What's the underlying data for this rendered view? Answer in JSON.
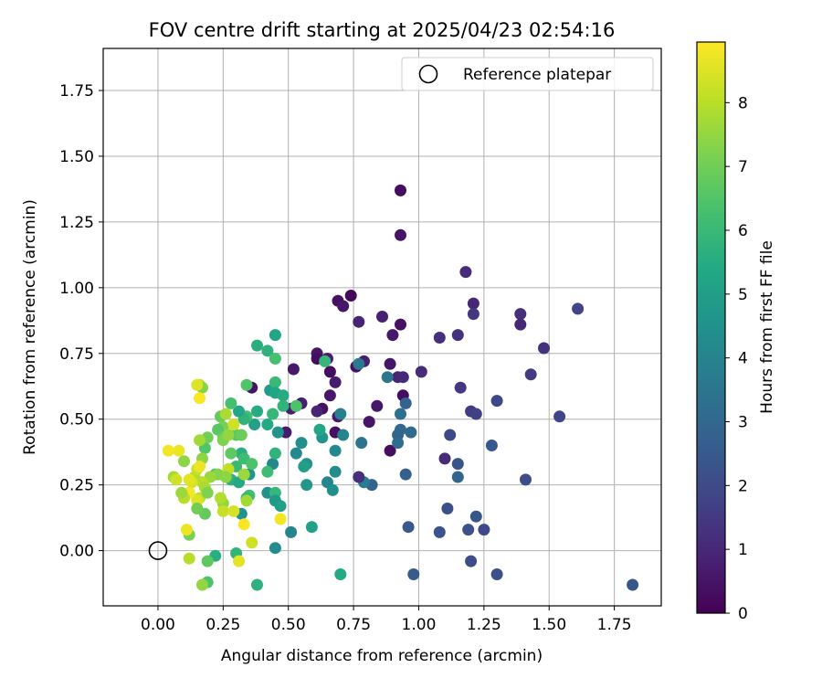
{
  "chart_data": {
    "type": "scatter",
    "title": "FOV centre drift starting at 2025/04/23 02:54:16",
    "xlabel": "Angular distance from reference (arcmin)",
    "ylabel": "Rotation from reference (arcmin)",
    "xlim": [
      -0.21,
      1.93
    ],
    "ylim": [
      -0.21,
      1.91
    ],
    "xticks": [
      0,
      0.25,
      0.5,
      0.75,
      1.0,
      1.25,
      1.5,
      1.75
    ],
    "xtick_labels": [
      "0.00",
      "0.25",
      "0.50",
      "0.75",
      "1.00",
      "1.25",
      "1.50",
      "1.75"
    ],
    "yticks": [
      0,
      0.25,
      0.5,
      0.75,
      1.0,
      1.25,
      1.5,
      1.75
    ],
    "ytick_labels": [
      "0.00",
      "0.25",
      "0.50",
      "0.75",
      "1.00",
      "1.25",
      "1.50",
      "1.75"
    ],
    "grid": true,
    "legend": {
      "position": "top-right",
      "entries": [
        "Reference platepar"
      ]
    },
    "reference_point": {
      "x": 0.0,
      "y": 0.0
    },
    "colorbar": {
      "label": "Hours from first FF file",
      "min": 0,
      "max": 8.95,
      "ticks": [
        0,
        1,
        2,
        3,
        4,
        5,
        6,
        7,
        8
      ],
      "tick_labels": [
        "0",
        "1",
        "2",
        "3",
        "4",
        "5",
        "6",
        "7",
        "8"
      ],
      "colormap": "viridis"
    },
    "points": [
      {
        "x": 0.93,
        "y": 1.37,
        "t": 0.3
      },
      {
        "x": 0.93,
        "y": 1.2,
        "t": 0.5
      },
      {
        "x": 0.74,
        "y": 0.97,
        "t": 0.2
      },
      {
        "x": 0.69,
        "y": 0.95,
        "t": 0.4
      },
      {
        "x": 0.71,
        "y": 0.93,
        "t": 0.6
      },
      {
        "x": 0.86,
        "y": 0.89,
        "t": 0.8
      },
      {
        "x": 0.77,
        "y": 0.87,
        "t": 0.9
      },
      {
        "x": 0.93,
        "y": 0.86,
        "t": 0.4
      },
      {
        "x": 0.9,
        "y": 0.82,
        "t": 0.6
      },
      {
        "x": 0.61,
        "y": 0.75,
        "t": 0.5
      },
      {
        "x": 0.61,
        "y": 0.73,
        "t": 0.3
      },
      {
        "x": 0.65,
        "y": 0.73,
        "t": 0.7
      },
      {
        "x": 0.79,
        "y": 0.72,
        "t": 0.8
      },
      {
        "x": 0.89,
        "y": 0.71,
        "t": 0.5
      },
      {
        "x": 0.52,
        "y": 0.69,
        "t": 0.6
      },
      {
        "x": 0.76,
        "y": 0.7,
        "t": 0.4
      },
      {
        "x": 0.66,
        "y": 0.68,
        "t": 0.3
      },
      {
        "x": 0.92,
        "y": 0.66,
        "t": 0.9
      },
      {
        "x": 0.94,
        "y": 0.66,
        "t": 1.0
      },
      {
        "x": 0.68,
        "y": 0.64,
        "t": 0.7
      },
      {
        "x": 0.36,
        "y": 0.62,
        "t": 0.5
      },
      {
        "x": 0.66,
        "y": 0.59,
        "t": 0.6
      },
      {
        "x": 0.94,
        "y": 0.59,
        "t": 0.3
      },
      {
        "x": 0.55,
        "y": 0.56,
        "t": 0.8
      },
      {
        "x": 0.84,
        "y": 0.55,
        "t": 0.6
      },
      {
        "x": 0.63,
        "y": 0.54,
        "t": 0.4
      },
      {
        "x": 0.61,
        "y": 0.53,
        "t": 0.9
      },
      {
        "x": 0.69,
        "y": 0.51,
        "t": 0.6
      },
      {
        "x": 0.81,
        "y": 0.49,
        "t": 0.5
      },
      {
        "x": 0.49,
        "y": 0.45,
        "t": 0.7
      },
      {
        "x": 0.68,
        "y": 0.45,
        "t": 0.4
      },
      {
        "x": 0.89,
        "y": 0.38,
        "t": 0.3
      },
      {
        "x": 0.51,
        "y": 0.54,
        "t": 0.8
      },
      {
        "x": 1.01,
        "y": 0.68,
        "t": 1.1
      },
      {
        "x": 1.08,
        "y": 0.81,
        "t": 1.2
      },
      {
        "x": 1.15,
        "y": 0.82,
        "t": 1.3
      },
      {
        "x": 1.18,
        "y": 1.06,
        "t": 1.1
      },
      {
        "x": 1.21,
        "y": 0.94,
        "t": 1.0
      },
      {
        "x": 1.21,
        "y": 0.9,
        "t": 1.4
      },
      {
        "x": 1.39,
        "y": 0.9,
        "t": 1.2
      },
      {
        "x": 1.39,
        "y": 0.86,
        "t": 1.0
      },
      {
        "x": 1.48,
        "y": 0.77,
        "t": 1.3
      },
      {
        "x": 1.61,
        "y": 0.92,
        "t": 1.8
      },
      {
        "x": 1.43,
        "y": 0.67,
        "t": 1.5
      },
      {
        "x": 1.16,
        "y": 0.62,
        "t": 1.4
      },
      {
        "x": 1.2,
        "y": 0.53,
        "t": 1.6
      },
      {
        "x": 1.22,
        "y": 0.52,
        "t": 1.7
      },
      {
        "x": 1.3,
        "y": 0.57,
        "t": 1.9
      },
      {
        "x": 1.54,
        "y": 0.51,
        "t": 1.8
      },
      {
        "x": 1.1,
        "y": 0.35,
        "t": 1.1
      },
      {
        "x": 1.12,
        "y": 0.44,
        "t": 2.0
      },
      {
        "x": 1.15,
        "y": 0.33,
        "t": 2.3
      },
      {
        "x": 1.15,
        "y": 0.28,
        "t": 2.9
      },
      {
        "x": 1.28,
        "y": 0.4,
        "t": 2.5
      },
      {
        "x": 1.41,
        "y": 0.27,
        "t": 2.1
      },
      {
        "x": 1.11,
        "y": 0.16,
        "t": 2.2
      },
      {
        "x": 1.22,
        "y": 0.13,
        "t": 2.4
      },
      {
        "x": 1.19,
        "y": 0.08,
        "t": 2.2
      },
      {
        "x": 1.25,
        "y": 0.08,
        "t": 2.0
      },
      {
        "x": 1.08,
        "y": 0.07,
        "t": 2.3
      },
      {
        "x": 0.96,
        "y": 0.09,
        "t": 2.5
      },
      {
        "x": 0.98,
        "y": -0.09,
        "t": 2.6
      },
      {
        "x": 1.2,
        "y": -0.04,
        "t": 2.1
      },
      {
        "x": 1.3,
        "y": -0.09,
        "t": 2.2
      },
      {
        "x": 1.82,
        "y": -0.13,
        "t": 2.4
      },
      {
        "x": 0.92,
        "y": 0.44,
        "t": 2.9
      },
      {
        "x": 0.93,
        "y": 0.46,
        "t": 3.0
      },
      {
        "x": 0.92,
        "y": 0.41,
        "t": 3.2
      },
      {
        "x": 0.97,
        "y": 0.45,
        "t": 3.1
      },
      {
        "x": 0.93,
        "y": 0.52,
        "t": 3.3
      },
      {
        "x": 0.95,
        "y": 0.56,
        "t": 2.8
      },
      {
        "x": 0.95,
        "y": 0.29,
        "t": 2.7
      },
      {
        "x": 0.88,
        "y": 0.66,
        "t": 3.5
      },
      {
        "x": 0.77,
        "y": 0.71,
        "t": 3.6
      },
      {
        "x": 0.82,
        "y": 0.25,
        "t": 2.8
      },
      {
        "x": 0.79,
        "y": 0.26,
        "t": 3.7
      },
      {
        "x": 0.78,
        "y": 0.41,
        "t": 3.4
      },
      {
        "x": 0.77,
        "y": 0.28,
        "t": 1.2
      },
      {
        "x": 0.7,
        "y": 0.52,
        "t": 3.9
      },
      {
        "x": 0.71,
        "y": 0.44,
        "t": 4.0
      },
      {
        "x": 0.68,
        "y": 0.38,
        "t": 4.2
      },
      {
        "x": 0.68,
        "y": 0.3,
        "t": 4.3
      },
      {
        "x": 0.65,
        "y": 0.26,
        "t": 4.1
      },
      {
        "x": 0.67,
        "y": 0.23,
        "t": 4.4
      },
      {
        "x": 0.63,
        "y": 0.43,
        "t": 4.6
      },
      {
        "x": 0.62,
        "y": 0.46,
        "t": 5.3
      },
      {
        "x": 0.57,
        "y": 0.33,
        "t": 4.5
      },
      {
        "x": 0.55,
        "y": 0.41,
        "t": 4.4
      },
      {
        "x": 0.53,
        "y": 0.37,
        "t": 4.2
      },
      {
        "x": 0.57,
        "y": 0.25,
        "t": 4.7
      },
      {
        "x": 0.51,
        "y": 0.07,
        "t": 4.0
      },
      {
        "x": 0.45,
        "y": 0.01,
        "t": 4.3
      },
      {
        "x": 0.59,
        "y": 0.09,
        "t": 5.1
      },
      {
        "x": 0.7,
        "y": -0.09,
        "t": 5.4
      },
      {
        "x": 0.64,
        "y": 0.72,
        "t": 5.9
      },
      {
        "x": 0.56,
        "y": 0.32,
        "t": 5.0
      },
      {
        "x": 0.45,
        "y": 0.82,
        "t": 5.2
      },
      {
        "x": 0.38,
        "y": 0.78,
        "t": 5.6
      },
      {
        "x": 0.42,
        "y": 0.76,
        "t": 5.7
      },
      {
        "x": 0.45,
        "y": 0.73,
        "t": 6.3
      },
      {
        "x": 0.43,
        "y": 0.61,
        "t": 4.9
      },
      {
        "x": 0.45,
        "y": 0.64,
        "t": 6.0
      },
      {
        "x": 0.45,
        "y": 0.6,
        "t": 5.2
      },
      {
        "x": 0.48,
        "y": 0.59,
        "t": 5.5
      },
      {
        "x": 0.48,
        "y": 0.55,
        "t": 5.8
      },
      {
        "x": 0.53,
        "y": 0.55,
        "t": 6.4
      },
      {
        "x": 0.44,
        "y": 0.52,
        "t": 5.9
      },
      {
        "x": 0.42,
        "y": 0.48,
        "t": 5.4
      },
      {
        "x": 0.46,
        "y": 0.45,
        "t": 4.6
      },
      {
        "x": 0.44,
        "y": 0.33,
        "t": 4.2
      },
      {
        "x": 0.45,
        "y": 0.37,
        "t": 5.8
      },
      {
        "x": 0.42,
        "y": 0.3,
        "t": 6.1
      },
      {
        "x": 0.42,
        "y": 0.22,
        "t": 4.5
      },
      {
        "x": 0.45,
        "y": 0.22,
        "t": 5.9
      },
      {
        "x": 0.45,
        "y": 0.19,
        "t": 4.8
      },
      {
        "x": 0.47,
        "y": 0.17,
        "t": 5.0
      },
      {
        "x": 0.38,
        "y": -0.13,
        "t": 5.7
      },
      {
        "x": 0.38,
        "y": 0.53,
        "t": 5.5
      },
      {
        "x": 0.37,
        "y": 0.48,
        "t": 5.1
      },
      {
        "x": 0.34,
        "y": 0.63,
        "t": 6.5
      },
      {
        "x": 0.34,
        "y": 0.51,
        "t": 6.2
      },
      {
        "x": 0.33,
        "y": 0.5,
        "t": 5.8
      },
      {
        "x": 0.31,
        "y": 0.53,
        "t": 5.3
      },
      {
        "x": 0.32,
        "y": 0.37,
        "t": 5.6
      },
      {
        "x": 0.33,
        "y": 0.35,
        "t": 6.1
      },
      {
        "x": 0.35,
        "y": 0.29,
        "t": 4.7
      },
      {
        "x": 0.36,
        "y": 0.33,
        "t": 6.4
      },
      {
        "x": 0.3,
        "y": 0.44,
        "t": 6.6
      },
      {
        "x": 0.32,
        "y": 0.44,
        "t": 6.9
      },
      {
        "x": 0.28,
        "y": 0.56,
        "t": 6.3
      },
      {
        "x": 0.28,
        "y": 0.37,
        "t": 6.7
      },
      {
        "x": 0.3,
        "y": 0.32,
        "t": 6.0
      },
      {
        "x": 0.28,
        "y": 0.27,
        "t": 5.7
      },
      {
        "x": 0.31,
        "y": 0.26,
        "t": 5.4
      },
      {
        "x": 0.35,
        "y": 0.21,
        "t": 6.2
      },
      {
        "x": 0.34,
        "y": 0.2,
        "t": 5.9
      },
      {
        "x": 0.32,
        "y": 0.14,
        "t": 4.5
      },
      {
        "x": 0.3,
        "y": -0.01,
        "t": 5.8
      },
      {
        "x": 0.22,
        "y": -0.02,
        "t": 5.6
      },
      {
        "x": 0.19,
        "y": -0.12,
        "t": 6.4
      },
      {
        "x": 0.19,
        "y": -0.04,
        "t": 6.7
      },
      {
        "x": 0.24,
        "y": 0.51,
        "t": 6.8
      },
      {
        "x": 0.25,
        "y": 0.47,
        "t": 7.1
      },
      {
        "x": 0.23,
        "y": 0.46,
        "t": 6.6
      },
      {
        "x": 0.25,
        "y": 0.43,
        "t": 6.9
      },
      {
        "x": 0.25,
        "y": 0.42,
        "t": 7.2
      },
      {
        "x": 0.27,
        "y": 0.44,
        "t": 7.5
      },
      {
        "x": 0.26,
        "y": 0.52,
        "t": 7.8
      },
      {
        "x": 0.29,
        "y": 0.48,
        "t": 8.3
      },
      {
        "x": 0.18,
        "y": 0.39,
        "t": 6.5
      },
      {
        "x": 0.19,
        "y": 0.43,
        "t": 7.0
      },
      {
        "x": 0.16,
        "y": 0.42,
        "t": 7.7
      },
      {
        "x": 0.17,
        "y": 0.35,
        "t": 7.4
      },
      {
        "x": 0.22,
        "y": 0.29,
        "t": 6.2
      },
      {
        "x": 0.23,
        "y": 0.29,
        "t": 7.3
      },
      {
        "x": 0.2,
        "y": 0.28,
        "t": 7.6
      },
      {
        "x": 0.17,
        "y": 0.26,
        "t": 8.0
      },
      {
        "x": 0.14,
        "y": 0.28,
        "t": 7.9
      },
      {
        "x": 0.13,
        "y": 0.26,
        "t": 8.4
      },
      {
        "x": 0.12,
        "y": 0.27,
        "t": 8.6
      },
      {
        "x": 0.15,
        "y": 0.31,
        "t": 8.2
      },
      {
        "x": 0.16,
        "y": 0.32,
        "t": 8.7
      },
      {
        "x": 0.18,
        "y": 0.24,
        "t": 7.8
      },
      {
        "x": 0.16,
        "y": 0.2,
        "t": 8.1
      },
      {
        "x": 0.15,
        "y": 0.19,
        "t": 8.5
      },
      {
        "x": 0.19,
        "y": 0.22,
        "t": 7.2
      },
      {
        "x": 0.18,
        "y": 0.14,
        "t": 6.8
      },
      {
        "x": 0.15,
        "y": 0.16,
        "t": 7.0
      },
      {
        "x": 0.12,
        "y": 0.22,
        "t": 8.8
      },
      {
        "x": 0.1,
        "y": 0.2,
        "t": 8.0
      },
      {
        "x": 0.09,
        "y": 0.22,
        "t": 7.6
      },
      {
        "x": 0.1,
        "y": 0.34,
        "t": 7.4
      },
      {
        "x": 0.08,
        "y": 0.38,
        "t": 8.7
      },
      {
        "x": 0.04,
        "y": 0.38,
        "t": 8.8
      },
      {
        "x": 0.06,
        "y": 0.28,
        "t": 7.7
      },
      {
        "x": 0.07,
        "y": 0.27,
        "t": 8.3
      },
      {
        "x": 0.16,
        "y": 0.63,
        "t": 8.1
      },
      {
        "x": 0.17,
        "y": 0.62,
        "t": 7.3
      },
      {
        "x": 0.16,
        "y": 0.58,
        "t": 8.9
      },
      {
        "x": 0.15,
        "y": 0.63,
        "t": 8.5
      },
      {
        "x": 0.25,
        "y": 0.18,
        "t": 7.5
      },
      {
        "x": 0.24,
        "y": 0.2,
        "t": 7.9
      },
      {
        "x": 0.25,
        "y": 0.15,
        "t": 8.2
      },
      {
        "x": 0.29,
        "y": 0.15,
        "t": 8.4
      },
      {
        "x": 0.33,
        "y": 0.1,
        "t": 8.9
      },
      {
        "x": 0.36,
        "y": 0.03,
        "t": 8.3
      },
      {
        "x": 0.47,
        "y": 0.12,
        "t": 8.8
      },
      {
        "x": 0.31,
        "y": -0.04,
        "t": 8.6
      },
      {
        "x": 0.12,
        "y": 0.06,
        "t": 7.1
      },
      {
        "x": 0.11,
        "y": 0.08,
        "t": 8.7
      },
      {
        "x": 0.12,
        "y": -0.03,
        "t": 8.0
      },
      {
        "x": 0.17,
        "y": -0.13,
        "t": 7.5
      },
      {
        "x": 0.34,
        "y": 0.19,
        "t": 7.7
      },
      {
        "x": 0.27,
        "y": 0.31,
        "t": 8.1
      },
      {
        "x": 0.33,
        "y": 0.29,
        "t": 7.6
      },
      {
        "x": 0.26,
        "y": 0.28,
        "t": 7.4
      }
    ]
  }
}
